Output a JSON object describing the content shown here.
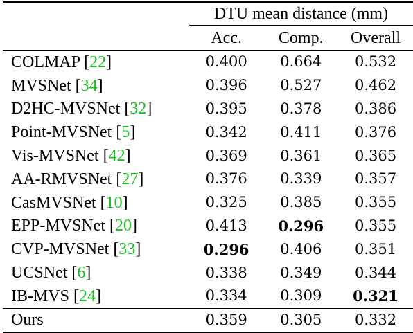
{
  "table": {
    "group_header": "DTU mean distance (mm)",
    "columns": [
      "Acc.",
      "Comp.",
      "Overall"
    ],
    "rows": [
      {
        "method": "COLMAP",
        "ref": "22",
        "acc": "0.400",
        "comp": "0.664",
        "overall": "0.532"
      },
      {
        "method": "MVSNet",
        "ref": "34",
        "acc": "0.396",
        "comp": "0.527",
        "overall": "0.462"
      },
      {
        "method": "D2HC-MVSNet",
        "ref": "32",
        "acc": "0.395",
        "comp": "0.378",
        "overall": "0.386"
      },
      {
        "method": "Point-MVSNet",
        "ref": "5",
        "acc": "0.342",
        "comp": "0.411",
        "overall": "0.376"
      },
      {
        "method": "Vis-MVSNet",
        "ref": "42",
        "acc": "0.369",
        "comp": "0.361",
        "overall": "0.365"
      },
      {
        "method": "AA-RMVSNet",
        "ref": "27",
        "acc": "0.376",
        "comp": "0.339",
        "overall": "0.357"
      },
      {
        "method": "CasMVSNet",
        "ref": "10",
        "acc": "0.325",
        "comp": "0.385",
        "overall": "0.355"
      },
      {
        "method": "EPP-MVSNet",
        "ref": "20",
        "acc": "0.413",
        "comp": "0.296",
        "overall": "0.355"
      },
      {
        "method": "CVP-MVSNet",
        "ref": "33",
        "acc": "0.296",
        "comp": "0.406",
        "overall": "0.351"
      },
      {
        "method": "UCSNet",
        "ref": "6",
        "acc": "0.338",
        "comp": "0.349",
        "overall": "0.344"
      },
      {
        "method": "IB-MVS",
        "ref": "24",
        "acc": "0.334",
        "comp": "0.309",
        "overall": "0.321"
      }
    ],
    "final_row": {
      "method": "Ours",
      "acc": "0.359",
      "comp": "0.305",
      "overall": "0.332"
    },
    "bold_cells": [
      {
        "row": 7,
        "col": "comp"
      },
      {
        "row": 8,
        "col": "acc"
      },
      {
        "row": 10,
        "col": "overall"
      }
    ],
    "citation_color": "#18c21e"
  }
}
